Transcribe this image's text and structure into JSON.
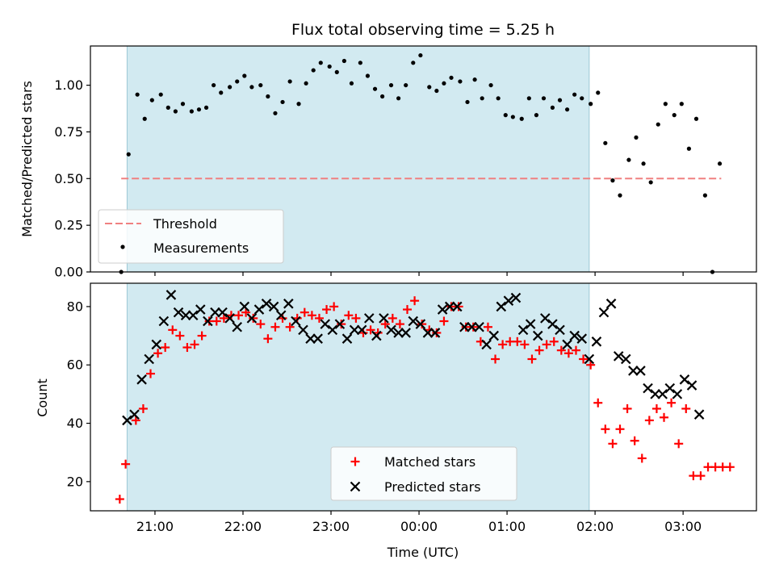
{
  "chart_data": [
    {
      "type": "scatter",
      "title": "Flux total observing time = 5.25 h",
      "xlabel": "",
      "ylabel": "Matched/Predicted stars",
      "ylim": [
        0,
        1.21
      ],
      "yticks": [
        "0.00",
        "0.25",
        "0.50",
        "0.75",
        "1.00"
      ],
      "xlim": [
        "20:16",
        "03:50"
      ],
      "xticks": [
        "21:00",
        "22:00",
        "23:00",
        "00:00",
        "01:00",
        "02:00",
        "03:00"
      ],
      "observing_window": [
        "20:41",
        "01:56"
      ],
      "threshold": {
        "name": "Threshold",
        "value": 0.5,
        "x_range": [
          "20:37",
          "03:26"
        ],
        "color": "#f08080"
      },
      "series": [
        {
          "name": "Measurements",
          "color": "#000000",
          "x": [
            "20:37",
            "20:42",
            "20:48",
            "20:53",
            "20:58",
            "21:04",
            "21:09",
            "21:14",
            "21:19",
            "21:25",
            "21:30",
            "21:35",
            "21:40",
            "21:45",
            "21:51",
            "21:56",
            "22:01",
            "22:06",
            "22:12",
            "22:17",
            "22:22",
            "22:27",
            "22:32",
            "22:38",
            "22:43",
            "22:48",
            "22:53",
            "22:59",
            "23:04",
            "23:09",
            "23:14",
            "23:20",
            "23:25",
            "23:30",
            "23:35",
            "23:41",
            "23:46",
            "23:51",
            "23:56",
            "00:01",
            "00:07",
            "00:12",
            "00:17",
            "00:22",
            "00:28",
            "00:33",
            "00:38",
            "00:43",
            "00:49",
            "00:54",
            "00:59",
            "01:04",
            "01:10",
            "01:15",
            "01:20",
            "01:25",
            "01:31",
            "01:36",
            "01:41",
            "01:46",
            "01:51",
            "01:57",
            "02:02",
            "02:07",
            "02:12",
            "02:17",
            "02:23",
            "02:28",
            "02:33",
            "02:38",
            "02:43",
            "02:48",
            "02:54",
            "02:59",
            "03:04",
            "03:09",
            "03:15",
            "03:20",
            "03:25"
          ],
          "y": [
            0.0,
            0.63,
            0.95,
            0.82,
            0.92,
            0.95,
            0.88,
            0.86,
            0.9,
            0.86,
            0.87,
            0.88,
            1.0,
            0.96,
            0.99,
            1.02,
            1.05,
            0.99,
            1.0,
            0.94,
            0.85,
            0.91,
            1.02,
            0.9,
            1.01,
            1.08,
            1.12,
            1.1,
            1.07,
            1.13,
            1.01,
            1.12,
            1.05,
            0.98,
            0.94,
            1.0,
            0.93,
            1.0,
            1.12,
            1.16,
            0.99,
            0.97,
            1.01,
            1.04,
            1.02,
            0.91,
            1.03,
            0.93,
            1.0,
            0.93,
            0.84,
            0.83,
            0.82,
            0.93,
            0.84,
            0.93,
            0.88,
            0.92,
            0.87,
            0.95,
            0.93,
            0.9,
            0.96,
            0.69,
            0.49,
            0.41,
            0.6,
            0.72,
            0.58,
            0.48,
            0.79,
            0.9,
            0.84,
            0.9,
            0.66,
            0.82,
            0.41,
            0.0,
            0.58
          ]
        }
      ],
      "legend": "lower-left",
      "grid": false
    },
    {
      "type": "scatter",
      "title": "",
      "xlabel": "Time (UTC)",
      "ylabel": "Count",
      "ylim": [
        10,
        88
      ],
      "yticks": [
        "20",
        "40",
        "60",
        "80"
      ],
      "xlim": [
        "20:16",
        "03:50"
      ],
      "xticks": [
        "21:00",
        "22:00",
        "23:00",
        "00:00",
        "01:00",
        "02:00",
        "03:00"
      ],
      "observing_window": [
        "20:41",
        "01:56"
      ],
      "series": [
        {
          "name": "Matched stars",
          "marker": "plus",
          "color": "#ff0000",
          "x": [
            "20:36",
            "20:40",
            "20:47",
            "20:52",
            "20:57",
            "21:02",
            "21:07",
            "21:12",
            "21:17",
            "21:22",
            "21:27",
            "21:32",
            "21:37",
            "21:42",
            "21:47",
            "21:52",
            "21:57",
            "22:02",
            "22:07",
            "22:12",
            "22:17",
            "22:22",
            "22:27",
            "22:32",
            "22:37",
            "22:42",
            "22:47",
            "22:52",
            "22:57",
            "23:02",
            "23:07",
            "23:12",
            "23:17",
            "23:22",
            "23:27",
            "23:32",
            "23:37",
            "23:42",
            "23:47",
            "23:52",
            "23:57",
            "00:02",
            "00:07",
            "00:12",
            "00:17",
            "00:22",
            "00:27",
            "00:32",
            "00:37",
            "00:42",
            "00:47",
            "00:52",
            "00:57",
            "01:02",
            "01:07",
            "01:12",
            "01:17",
            "01:22",
            "01:27",
            "01:32",
            "01:37",
            "01:42",
            "01:47",
            "01:52",
            "01:57",
            "02:02",
            "02:07",
            "02:12",
            "02:17",
            "02:22",
            "02:27",
            "02:32",
            "02:37",
            "02:42",
            "02:47",
            "02:52",
            "02:57",
            "03:02",
            "03:07",
            "03:12",
            "03:17",
            "03:22",
            "03:27",
            "03:32"
          ],
          "y": [
            14,
            26,
            41,
            45,
            57,
            64,
            66,
            72,
            70,
            66,
            67,
            70,
            75,
            75,
            76,
            77,
            77,
            78,
            76,
            74,
            69,
            73,
            76,
            73,
            76,
            78,
            77,
            76,
            79,
            80,
            74,
            77,
            76,
            71,
            72,
            71,
            74,
            76,
            74,
            79,
            82,
            74,
            72,
            71,
            75,
            80,
            80,
            73,
            73,
            68,
            73,
            62,
            67,
            68,
            68,
            67,
            62,
            65,
            67,
            68,
            65,
            64,
            65,
            62,
            60,
            47,
            38,
            33,
            38,
            45,
            34,
            28,
            41,
            45,
            42,
            47,
            33,
            45,
            22,
            22,
            25,
            25,
            25,
            25
          ]
        },
        {
          "name": "Predicted stars",
          "marker": "x",
          "color": "#000000",
          "x": [
            "20:41",
            "20:46",
            "20:51",
            "20:56",
            "21:01",
            "21:06",
            "21:11",
            "21:16",
            "21:21",
            "21:26",
            "21:31",
            "21:36",
            "21:41",
            "21:46",
            "21:51",
            "21:56",
            "22:01",
            "22:06",
            "22:11",
            "22:16",
            "22:21",
            "22:26",
            "22:31",
            "22:36",
            "22:41",
            "22:46",
            "22:51",
            "22:56",
            "23:01",
            "23:06",
            "23:11",
            "23:16",
            "23:21",
            "23:26",
            "23:31",
            "23:36",
            "23:41",
            "23:46",
            "23:51",
            "23:56",
            "00:01",
            "00:06",
            "00:11",
            "00:16",
            "00:21",
            "00:26",
            "00:31",
            "00:36",
            "00:41",
            "00:46",
            "00:51",
            "00:56",
            "01:01",
            "01:06",
            "01:11",
            "01:16",
            "01:21",
            "01:26",
            "01:31",
            "01:36",
            "01:41",
            "01:46",
            "01:51",
            "01:56",
            "02:01",
            "02:06",
            "02:11",
            "02:16",
            "02:21",
            "02:26",
            "02:31",
            "02:36",
            "02:41",
            "02:46",
            "02:51",
            "02:56",
            "03:01",
            "03:06",
            "03:11"
          ],
          "y": [
            41,
            43,
            55,
            62,
            67,
            75,
            84,
            78,
            77,
            77,
            79,
            75,
            78,
            78,
            76,
            73,
            80,
            76,
            79,
            81,
            80,
            77,
            81,
            75,
            72,
            69,
            69,
            74,
            72,
            74,
            69,
            72,
            72,
            76,
            70,
            76,
            72,
            71,
            71,
            75,
            74,
            71,
            71,
            79,
            80,
            80,
            73,
            73,
            73,
            67,
            70,
            80,
            82,
            83,
            72,
            74,
            70,
            76,
            74,
            72,
            67,
            70,
            69,
            62,
            68,
            78,
            81,
            63,
            62,
            58,
            58,
            52,
            50,
            50,
            52,
            50,
            55,
            53,
            43
          ]
        }
      ],
      "legend": "lower-center",
      "grid": false
    }
  ]
}
